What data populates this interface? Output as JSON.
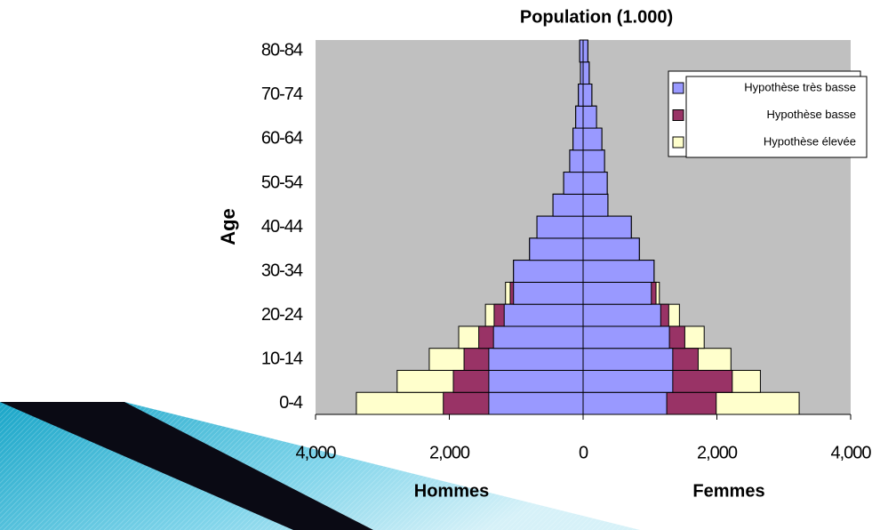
{
  "chart_data": {
    "type": "pyramid",
    "title": "Population (1.000)",
    "y_label": "Age",
    "left_label": "Hommes",
    "right_label": "Femmes",
    "categories": [
      "0-4",
      null,
      "10-14",
      null,
      "20-24",
      null,
      "30-34",
      null,
      "40-44",
      null,
      "50-54",
      null,
      "60-64",
      null,
      "70-74",
      null,
      "80-84"
    ],
    "series": [
      {
        "name": "Hypothèse très basse",
        "color": "#9999ff",
        "hommes": [
          -1410,
          -1410,
          -1410,
          -1340,
          -1180,
          -1040,
          -1040,
          -800,
          -690,
          -450,
          -290,
          -200,
          -150,
          -110,
          -70,
          -40,
          -50
        ],
        "femmes": [
          1250,
          1340,
          1340,
          1290,
          1160,
          1020,
          1060,
          840,
          720,
          370,
          360,
          320,
          280,
          200,
          130,
          90,
          70
        ]
      },
      {
        "name": "Hypothèse basse",
        "color": "#993366",
        "hommes": [
          -2090,
          -1940,
          -1780,
          -1560,
          -1330,
          -1090,
          -1040,
          -800,
          -690,
          -450,
          -290,
          -200,
          -150,
          -110,
          -70,
          -40,
          -50
        ],
        "femmes": [
          1990,
          2230,
          1720,
          1520,
          1280,
          1090,
          1060,
          840,
          720,
          370,
          360,
          320,
          280,
          200,
          130,
          90,
          70
        ]
      },
      {
        "name": "Hypothèse élevée",
        "color": "#ffffcc",
        "hommes": [
          -3390,
          -2780,
          -2300,
          -1860,
          -1460,
          -1160,
          -1040,
          -800,
          -690,
          -450,
          -290,
          -200,
          -150,
          -110,
          -70,
          -40,
          -50
        ],
        "femmes": [
          3230,
          2650,
          2210,
          1810,
          1440,
          1140,
          1060,
          840,
          720,
          370,
          360,
          320,
          280,
          200,
          130,
          90,
          70
        ]
      }
    ],
    "xlim": [
      -4000,
      4000
    ],
    "xticks": [
      {
        "value": -4000,
        "label": "4,000"
      },
      {
        "value": -2000,
        "label": "2,000"
      },
      0,
      {
        "value": 2000,
        "label": "2,000"
      },
      {
        "value": 4000,
        "label": "4,000"
      }
    ],
    "plot_background": "#c0c0c0"
  }
}
